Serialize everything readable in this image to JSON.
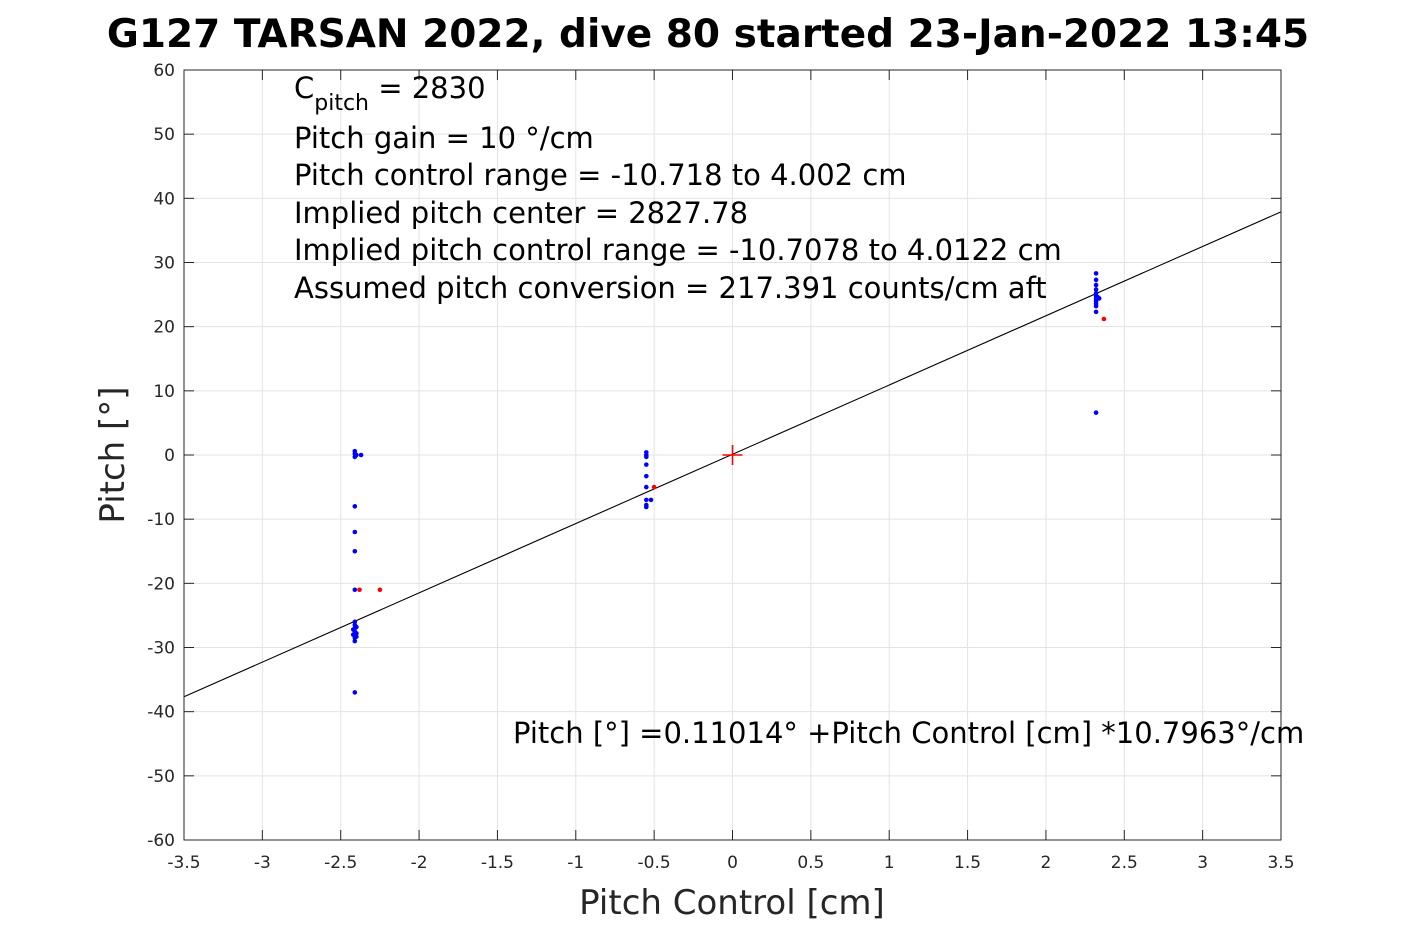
{
  "chart_data": {
    "type": "scatter",
    "title": "G127 TARSAN 2022, dive 80 started 23-Jan-2022 13:45",
    "xlabel": "Pitch Control [cm]",
    "ylabel": "Pitch [°]",
    "xlim": [
      -3.5,
      3.5
    ],
    "ylim": [
      -60,
      60
    ],
    "xticks": [
      -3.5,
      -3,
      -2.5,
      -2,
      -1.5,
      -1,
      -0.5,
      0,
      0.5,
      1,
      1.5,
      2,
      2.5,
      3,
      3.5
    ],
    "xtick_labels": [
      "-3.5",
      "-3",
      "-2.5",
      "-2",
      "-1.5",
      "-1",
      "-0.5",
      "0",
      "0.5",
      "1",
      "1.5",
      "2",
      "2.5",
      "3",
      "3.5"
    ],
    "yticks": [
      -60,
      -50,
      -40,
      -30,
      -20,
      -10,
      0,
      10,
      20,
      30,
      40,
      50,
      60
    ],
    "ytick_labels": [
      "-60",
      "-50",
      "-40",
      "-30",
      "-20",
      "-10",
      "0",
      "10",
      "20",
      "30",
      "40",
      "50",
      "60"
    ],
    "grid": true,
    "annotations": {
      "c_pitch_base": "C",
      "c_pitch_sub": "pitch",
      "c_pitch_value": " = 2830",
      "pitch_gain": "Pitch gain = 10 °/cm",
      "pitch_control_range": "Pitch control range = -10.718 to 4.002 cm",
      "implied_center": "Implied pitch center = 2827.78",
      "implied_range": "Implied pitch control range = -10.7078 to 4.0122 cm",
      "conversion": "Assumed pitch conversion = 217.391 counts/cm aft",
      "fit_equation": "Pitch [°] =0.11014° +Pitch Control [cm] *10.7963°/cm"
    },
    "fit_line": {
      "intercept": 0.11014,
      "slope": 10.7963,
      "color": "#000000"
    },
    "center_marker": {
      "x": 0,
      "y": 0,
      "color": "#ff0000"
    },
    "series": [
      {
        "color": "#0000ff",
        "points": [
          [
            -2.41,
            0.6
          ],
          [
            -2.41,
            0.2
          ],
          [
            -2.41,
            -0.3
          ],
          [
            -2.4,
            0.0
          ],
          [
            -2.37,
            0.0
          ],
          [
            -2.41,
            -8.0
          ],
          [
            -2.41,
            -12.0
          ],
          [
            -2.41,
            -15.0
          ],
          [
            -2.41,
            -21.0
          ],
          [
            -2.41,
            -26.0
          ],
          [
            -2.41,
            -26.5
          ],
          [
            -2.41,
            -27.0
          ],
          [
            -2.41,
            -27.5
          ],
          [
            -2.41,
            -28.0
          ],
          [
            -2.41,
            -28.5
          ],
          [
            -2.41,
            -29.0
          ],
          [
            -2.4,
            -26.8
          ],
          [
            -2.4,
            -27.8
          ],
          [
            -2.4,
            -28.3
          ],
          [
            -2.42,
            -27.2
          ],
          [
            -2.42,
            -28.0
          ],
          [
            -2.41,
            -37.0
          ],
          [
            -0.55,
            0.4
          ],
          [
            -0.55,
            0.0
          ],
          [
            -0.55,
            -0.3
          ],
          [
            -0.55,
            -1.5
          ],
          [
            -0.55,
            -3.3
          ],
          [
            -0.55,
            -5.0
          ],
          [
            -0.55,
            -7.0
          ],
          [
            -0.55,
            -7.8
          ],
          [
            -0.55,
            -8.1
          ],
          [
            -0.52,
            -7.0
          ],
          [
            2.32,
            28.3
          ],
          [
            2.32,
            27.3
          ],
          [
            2.32,
            26.5
          ],
          [
            2.32,
            25.8
          ],
          [
            2.32,
            25.2
          ],
          [
            2.32,
            24.8
          ],
          [
            2.32,
            24.4
          ],
          [
            2.32,
            24.0
          ],
          [
            2.32,
            23.6
          ],
          [
            2.32,
            23.2
          ],
          [
            2.32,
            22.3
          ],
          [
            2.33,
            24.6
          ],
          [
            2.34,
            24.4
          ],
          [
            2.32,
            6.6
          ]
        ]
      },
      {
        "color": "#ff0000",
        "points": [
          [
            -2.38,
            -21.0
          ],
          [
            -2.25,
            -21.0
          ],
          [
            -0.5,
            -5.0
          ],
          [
            2.37,
            21.2
          ]
        ]
      }
    ]
  }
}
